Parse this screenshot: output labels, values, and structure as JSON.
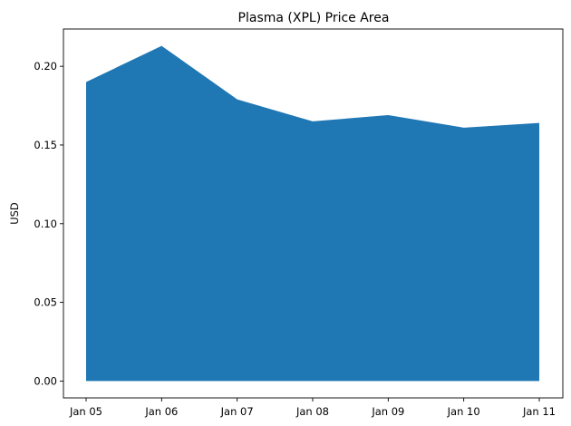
{
  "chart_data": {
    "type": "area",
    "title": "Plasma (XPL) Price Area",
    "xlabel": "",
    "ylabel": "USD",
    "x": [
      "Jan 05",
      "Jan 06",
      "Jan 07",
      "Jan 08",
      "Jan 09",
      "Jan 10",
      "Jan 11"
    ],
    "series": [
      {
        "values": [
          0.19,
          0.213,
          0.179,
          0.165,
          0.169,
          0.161,
          0.164
        ],
        "color": "#1f77b4"
      }
    ],
    "ylim": [
      -0.0107,
      0.2237
    ],
    "yticks": [
      0.0,
      0.05,
      0.1,
      0.15,
      0.2
    ],
    "ytick_labels": [
      "0.00",
      "0.05",
      "0.10",
      "0.15",
      "0.20"
    ],
    "grid": false,
    "legend": "none"
  }
}
